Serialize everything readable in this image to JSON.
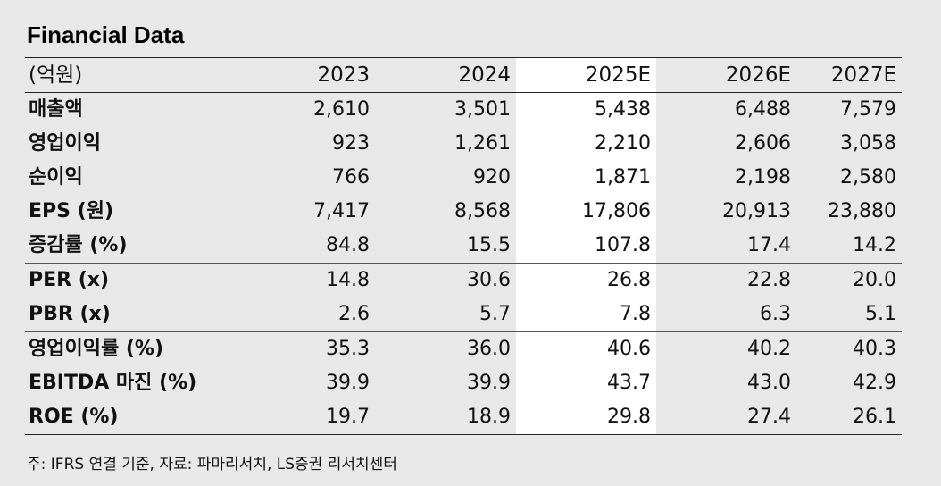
{
  "title": "Financial Data",
  "header": [
    "(억원)",
    "2023",
    "2024",
    "2025E",
    "2026E",
    "2027E"
  ],
  "rows": [
    {
      "label": "매출액",
      "values": [
        "2,610",
        "3,501",
        "5,438",
        "6,488",
        "7,579"
      ]
    },
    {
      "label": "영업이익",
      "values": [
        "923",
        "1,261",
        "2,210",
        "2,606",
        "3,058"
      ]
    },
    {
      "label": "순이익",
      "values": [
        "766",
        "920",
        "1,871",
        "2,198",
        "2,580"
      ]
    },
    {
      "label": "EPS (원)",
      "values": [
        "7,417",
        "8,568",
        "17,806",
        "20,913",
        "23,880"
      ]
    },
    {
      "label": "증감률 (%)",
      "values": [
        "84.8",
        "15.5",
        "107.8",
        "17.4",
        "14.2"
      ]
    },
    {
      "label": "PER (x)",
      "values": [
        "14.8",
        "30.6",
        "26.8",
        "22.8",
        "20.0"
      ]
    },
    {
      "label": "PBR (x)",
      "values": [
        "2.6",
        "5.7",
        "7.8",
        "6.3",
        "5.1"
      ]
    },
    {
      "label": "영업이익률 (%)",
      "values": [
        "35.3",
        "36.0",
        "40.6",
        "40.2",
        "40.3"
      ]
    },
    {
      "label": "EBITDA 마진 (%)",
      "values": [
        "39.9",
        "39.9",
        "43.7",
        "43.0",
        "42.9"
      ]
    },
    {
      "label": "ROE (%)",
      "values": [
        "19.7",
        "18.9",
        "29.8",
        "27.4",
        "26.1"
      ]
    }
  ],
  "note": "주: IFRS 연결 기준, 자료: 파마리서치, LS증권 리서치센터",
  "colors": {
    "background": "#e8e8e8",
    "highlight_column": "#ffffff",
    "rule": "#222222"
  }
}
